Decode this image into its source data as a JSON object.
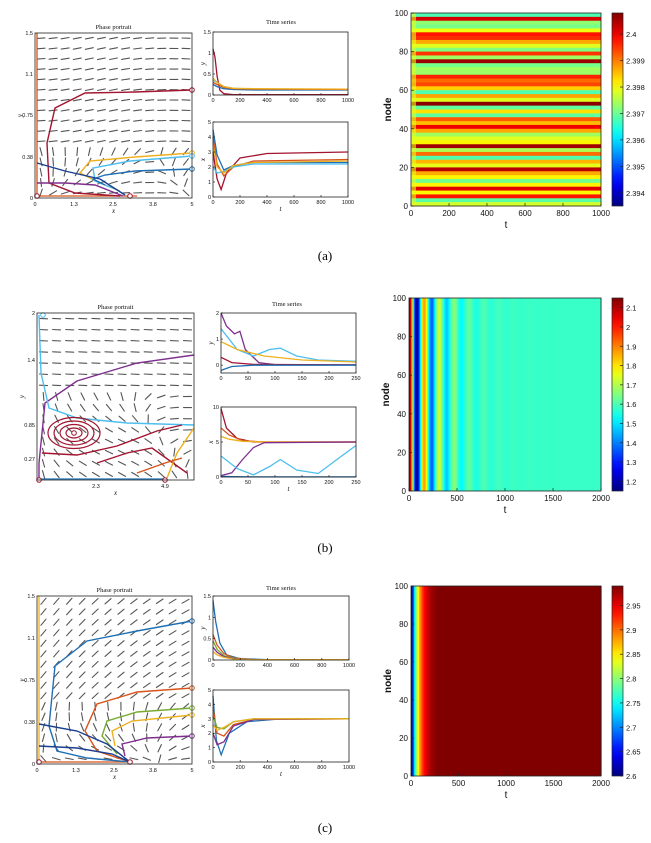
{
  "captions": {
    "a": "(a)",
    "b": "(b)",
    "c": "(c)"
  },
  "panels": [
    {
      "id": "a",
      "phase_title": "Phase portrait",
      "ts_title": "Time series",
      "phase_xticks": [
        "0",
        "1.3",
        "2.5",
        "3.8",
        "5"
      ],
      "phase_yticks": [
        "0",
        "0.38",
        "0.75",
        "1.1",
        "1.5"
      ],
      "phase_xlabel": "x",
      "phase_ylabel": "y"
    },
    {
      "id": "b",
      "phase_title": "Phase portrait",
      "ts_title": "Time series",
      "phase_xticks": [
        "2.3",
        "4.9"
      ],
      "phase_yticks": [
        "0.27",
        "0.85",
        "1.4",
        "2"
      ],
      "phase_xlabel": "x",
      "phase_ylabel": "y"
    },
    {
      "id": "c",
      "phase_title": "Phase portrait",
      "ts_title": "Time series",
      "phase_xticks": [
        "0",
        "1.3",
        "2.5",
        "3.8",
        "5"
      ],
      "phase_yticks": [
        "0",
        "0.38",
        "0.75",
        "1.1",
        "1.5"
      ],
      "phase_xlabel": "x",
      "phase_ylabel": "y"
    }
  ],
  "colors": {
    "blue": "#1f6fb4",
    "orange": "#d95319",
    "yellow": "#edb120",
    "purple": "#7e2f8e",
    "green": "#77ac30",
    "cyan": "#4dbeee",
    "darkred": "#a2142f",
    "navy": "#1a3f8f",
    "arrow": "#555555"
  },
  "chart_data": [
    {
      "type": "line",
      "panel": "a-top",
      "title": "Time series",
      "xlabel": "",
      "ylabel": "y",
      "xlim": [
        0,
        1000
      ],
      "ylim": [
        0,
        1.5
      ],
      "xticks": [
        0,
        200,
        400,
        600,
        800,
        1000
      ],
      "yticks": [
        0,
        0.5,
        1,
        1.5
      ],
      "series": [
        {
          "name": "darkred",
          "color": "darkred",
          "x": [
            0,
            15,
            30,
            50,
            80,
            150,
            1000
          ],
          "y": [
            1.1,
            0.9,
            0.45,
            0.12,
            0.03,
            0.01,
            0.01
          ]
        },
        {
          "name": "cyan",
          "color": "cyan",
          "x": [
            0,
            30,
            80,
            150,
            300,
            1000
          ],
          "y": [
            0.35,
            0.3,
            0.2,
            0.16,
            0.14,
            0.13
          ]
        },
        {
          "name": "blue",
          "color": "blue",
          "x": [
            0,
            30,
            80,
            150,
            300,
            1000
          ],
          "y": [
            0.25,
            0.2,
            0.15,
            0.13,
            0.12,
            0.12
          ]
        },
        {
          "name": "orange",
          "color": "orange",
          "x": [
            0,
            30,
            80,
            150,
            300,
            1000
          ],
          "y": [
            0.3,
            0.25,
            0.18,
            0.15,
            0.14,
            0.13
          ]
        },
        {
          "name": "yellow",
          "color": "yellow",
          "x": [
            0,
            30,
            80,
            150,
            300,
            1000
          ],
          "y": [
            0.4,
            0.3,
            0.2,
            0.16,
            0.15,
            0.14
          ]
        }
      ]
    },
    {
      "type": "line",
      "panel": "a-bottom",
      "title": "",
      "xlabel": "t",
      "ylabel": "x",
      "xlim": [
        0,
        1000
      ],
      "ylim": [
        0,
        5
      ],
      "xticks": [
        0,
        200,
        400,
        600,
        800,
        1000
      ],
      "yticks": [
        0,
        1,
        2,
        3,
        4,
        5
      ],
      "series": [
        {
          "name": "darkred",
          "color": "darkred",
          "x": [
            0,
            30,
            60,
            100,
            200,
            400,
            1000
          ],
          "y": [
            3.0,
            1.2,
            0.5,
            1.6,
            2.6,
            2.9,
            3.0
          ]
        },
        {
          "name": "orange",
          "color": "orange",
          "x": [
            0,
            30,
            80,
            150,
            300,
            1000
          ],
          "y": [
            4.0,
            2.2,
            1.4,
            2.0,
            2.4,
            2.5
          ]
        },
        {
          "name": "blue",
          "color": "blue",
          "x": [
            0,
            30,
            80,
            150,
            300,
            1000
          ],
          "y": [
            4.5,
            2.8,
            1.8,
            2.1,
            2.3,
            2.3
          ]
        },
        {
          "name": "cyan",
          "color": "cyan",
          "x": [
            0,
            30,
            80,
            150,
            300,
            1000
          ],
          "y": [
            2.0,
            1.6,
            1.7,
            2.0,
            2.2,
            2.2
          ]
        },
        {
          "name": "yellow",
          "color": "yellow",
          "x": [
            0,
            30,
            80,
            150,
            300,
            1000
          ],
          "y": [
            3.5,
            2.0,
            1.6,
            2.1,
            2.3,
            2.4
          ]
        }
      ]
    },
    {
      "type": "heatmap",
      "panel": "a-heatmap",
      "xlabel": "t",
      "ylabel": "node",
      "xlim": [
        0,
        1000
      ],
      "ylim": [
        0,
        100
      ],
      "xticks": [
        0,
        200,
        400,
        600,
        800,
        1000
      ],
      "yticks": [
        0,
        20,
        40,
        60,
        80,
        100
      ],
      "colorbar_ticks": [
        2.394,
        2.395,
        2.396,
        2.397,
        2.398,
        2.399,
        2.4
      ],
      "colorbar_range": [
        2.3935,
        2.4008
      ],
      "pattern": "horizontal stripes varying by node; values near upper end dominate"
    },
    {
      "type": "line",
      "panel": "b-top",
      "title": "Time series",
      "xlabel": "",
      "ylabel": "y",
      "xlim": [
        0,
        250
      ],
      "ylim": [
        -0.3,
        2
      ],
      "xticks": [
        0,
        50,
        100,
        150,
        200,
        250
      ],
      "yticks": [
        0,
        1,
        2
      ],
      "series": [
        {
          "name": "purple",
          "color": "purple",
          "x": [
            0,
            10,
            25,
            35,
            45,
            70,
            100,
            250
          ],
          "y": [
            2.0,
            1.5,
            1.2,
            1.3,
            0.6,
            0.1,
            0.02,
            0.01
          ]
        },
        {
          "name": "cyan",
          "color": "cyan",
          "x": [
            0,
            30,
            60,
            90,
            110,
            140,
            180,
            250
          ],
          "y": [
            1.4,
            0.6,
            0.35,
            0.6,
            0.65,
            0.35,
            0.2,
            0.15
          ]
        },
        {
          "name": "yellow",
          "color": "yellow",
          "x": [
            0,
            30,
            80,
            150,
            250
          ],
          "y": [
            0.9,
            0.6,
            0.35,
            0.2,
            0.12
          ]
        },
        {
          "name": "darkred",
          "color": "darkred",
          "x": [
            0,
            20,
            60,
            250
          ],
          "y": [
            0.3,
            0.1,
            0.03,
            0.01
          ]
        },
        {
          "name": "blue",
          "color": "blue",
          "x": [
            0,
            20,
            60,
            250
          ],
          "y": [
            -0.2,
            -0.05,
            0.0,
            0.0
          ]
        }
      ]
    },
    {
      "type": "line",
      "panel": "b-bottom",
      "title": "",
      "xlabel": "t",
      "ylabel": "x",
      "xlim": [
        0,
        250
      ],
      "ylim": [
        0,
        10
      ],
      "xticks": [
        0,
        50,
        100,
        150,
        200,
        250
      ],
      "yticks": [
        0,
        5,
        10
      ],
      "series": [
        {
          "name": "darkred",
          "color": "darkred",
          "x": [
            0,
            10,
            30,
            60,
            100,
            250
          ],
          "y": [
            9.8,
            7.0,
            5.5,
            5.0,
            5.0,
            5.0
          ]
        },
        {
          "name": "orange",
          "color": "orange",
          "x": [
            0,
            15,
            40,
            80,
            250
          ],
          "y": [
            7.0,
            6.0,
            5.2,
            5.0,
            5.0
          ]
        },
        {
          "name": "yellow",
          "color": "yellow",
          "x": [
            0,
            15,
            40,
            80,
            250
          ],
          "y": [
            5.8,
            5.4,
            5.1,
            5.0,
            5.0
          ]
        },
        {
          "name": "purple",
          "color": "purple",
          "x": [
            0,
            20,
            40,
            60,
            80,
            250
          ],
          "y": [
            0.2,
            0.6,
            2.5,
            4.2,
            4.9,
            5.0
          ]
        },
        {
          "name": "cyan",
          "color": "cyan",
          "x": [
            0,
            30,
            60,
            90,
            110,
            140,
            180,
            220,
            250
          ],
          "y": [
            3.0,
            1.2,
            0.3,
            1.5,
            2.5,
            1.0,
            0.5,
            2.8,
            4.5
          ]
        },
        {
          "name": "blue",
          "color": "blue",
          "x": [
            0,
            20,
            60,
            250
          ],
          "y": [
            0.1,
            0.05,
            0.02,
            0.02
          ]
        }
      ]
    },
    {
      "type": "heatmap",
      "panel": "b-heatmap",
      "xlabel": "t",
      "ylabel": "node",
      "xlim": [
        0,
        2000
      ],
      "ylim": [
        0,
        100
      ],
      "xticks": [
        0,
        500,
        1000,
        1500,
        2000
      ],
      "yticks": [
        0,
        20,
        40,
        60,
        80,
        100
      ],
      "colorbar_ticks": [
        1.2,
        1.3,
        1.4,
        1.5,
        1.6,
        1.7,
        1.8,
        1.9,
        2,
        2.1
      ],
      "colorbar_range": [
        1.15,
        2.15
      ],
      "pattern": "vertical bands uniform across nodes; damped oscillation in t"
    },
    {
      "type": "line",
      "panel": "c-top",
      "title": "Time series",
      "xlabel": "",
      "ylabel": "y",
      "xlim": [
        0,
        1000
      ],
      "ylim": [
        0,
        1.5
      ],
      "xticks": [
        0,
        200,
        400,
        600,
        800,
        1000
      ],
      "yticks": [
        0,
        0.5,
        1,
        1.5
      ],
      "series": [
        {
          "name": "blue",
          "color": "blue",
          "x": [
            0,
            20,
            50,
            100,
            200,
            400,
            1000
          ],
          "y": [
            1.4,
            0.9,
            0.4,
            0.12,
            0.03,
            0.01,
            0.01
          ]
        },
        {
          "name": "orange",
          "color": "orange",
          "x": [
            0,
            30,
            80,
            150,
            300,
            1000
          ],
          "y": [
            0.6,
            0.35,
            0.15,
            0.05,
            0.01,
            0.01
          ]
        },
        {
          "name": "green",
          "color": "green",
          "x": [
            0,
            30,
            80,
            150,
            300,
            1000
          ],
          "y": [
            0.45,
            0.25,
            0.1,
            0.04,
            0.01,
            0.01
          ]
        },
        {
          "name": "purple",
          "color": "purple",
          "x": [
            0,
            30,
            80,
            150,
            300,
            1000
          ],
          "y": [
            0.3,
            0.18,
            0.08,
            0.03,
            0.01,
            0.01
          ]
        },
        {
          "name": "yellow",
          "color": "yellow",
          "x": [
            0,
            30,
            80,
            150,
            300,
            1000
          ],
          "y": [
            0.2,
            0.12,
            0.06,
            0.02,
            0.01,
            0.01
          ]
        }
      ]
    },
    {
      "type": "line",
      "panel": "c-bottom",
      "title": "",
      "xlabel": "t",
      "ylabel": "x",
      "xlim": [
        0,
        1000
      ],
      "ylim": [
        0,
        5
      ],
      "xticks": [
        0,
        200,
        400,
        600,
        800,
        1000
      ],
      "yticks": [
        0,
        1,
        2,
        3,
        4,
        5
      ],
      "series": [
        {
          "name": "blue",
          "color": "blue",
          "x": [
            0,
            25,
            60,
            120,
            250,
            500,
            1000
          ],
          "y": [
            4.6,
            1.5,
            0.5,
            2.0,
            2.8,
            3.0,
            3.0
          ]
        },
        {
          "name": "orange",
          "color": "orange",
          "x": [
            0,
            30,
            80,
            150,
            300,
            1000
          ],
          "y": [
            3.8,
            2.0,
            1.8,
            2.6,
            2.95,
            3.0
          ]
        },
        {
          "name": "purple",
          "color": "purple",
          "x": [
            0,
            30,
            80,
            150,
            300,
            1000
          ],
          "y": [
            2.0,
            1.2,
            1.4,
            2.5,
            2.95,
            3.0
          ]
        },
        {
          "name": "green",
          "color": "green",
          "x": [
            0,
            30,
            80,
            150,
            300,
            1000
          ],
          "y": [
            3.2,
            2.4,
            2.3,
            2.8,
            3.0,
            3.0
          ]
        },
        {
          "name": "yellow",
          "color": "yellow",
          "x": [
            0,
            30,
            80,
            150,
            300,
            1000
          ],
          "y": [
            2.6,
            2.2,
            2.4,
            2.8,
            3.0,
            3.0
          ]
        }
      ]
    },
    {
      "type": "heatmap",
      "panel": "c-heatmap",
      "xlabel": "t",
      "ylabel": "node",
      "xlim": [
        0,
        2000
      ],
      "ylim": [
        0,
        100
      ],
      "xticks": [
        0,
        500,
        1000,
        1500,
        2000
      ],
      "yticks": [
        0,
        20,
        40,
        60,
        80,
        100
      ],
      "colorbar_ticks": [
        2.6,
        2.65,
        2.7,
        2.75,
        2.8,
        2.85,
        2.9,
        2.95
      ],
      "colorbar_range": [
        2.6,
        2.99
      ],
      "pattern": "uniform across nodes; rapid rise from 2.6 to 2.99 within t < 300"
    }
  ]
}
